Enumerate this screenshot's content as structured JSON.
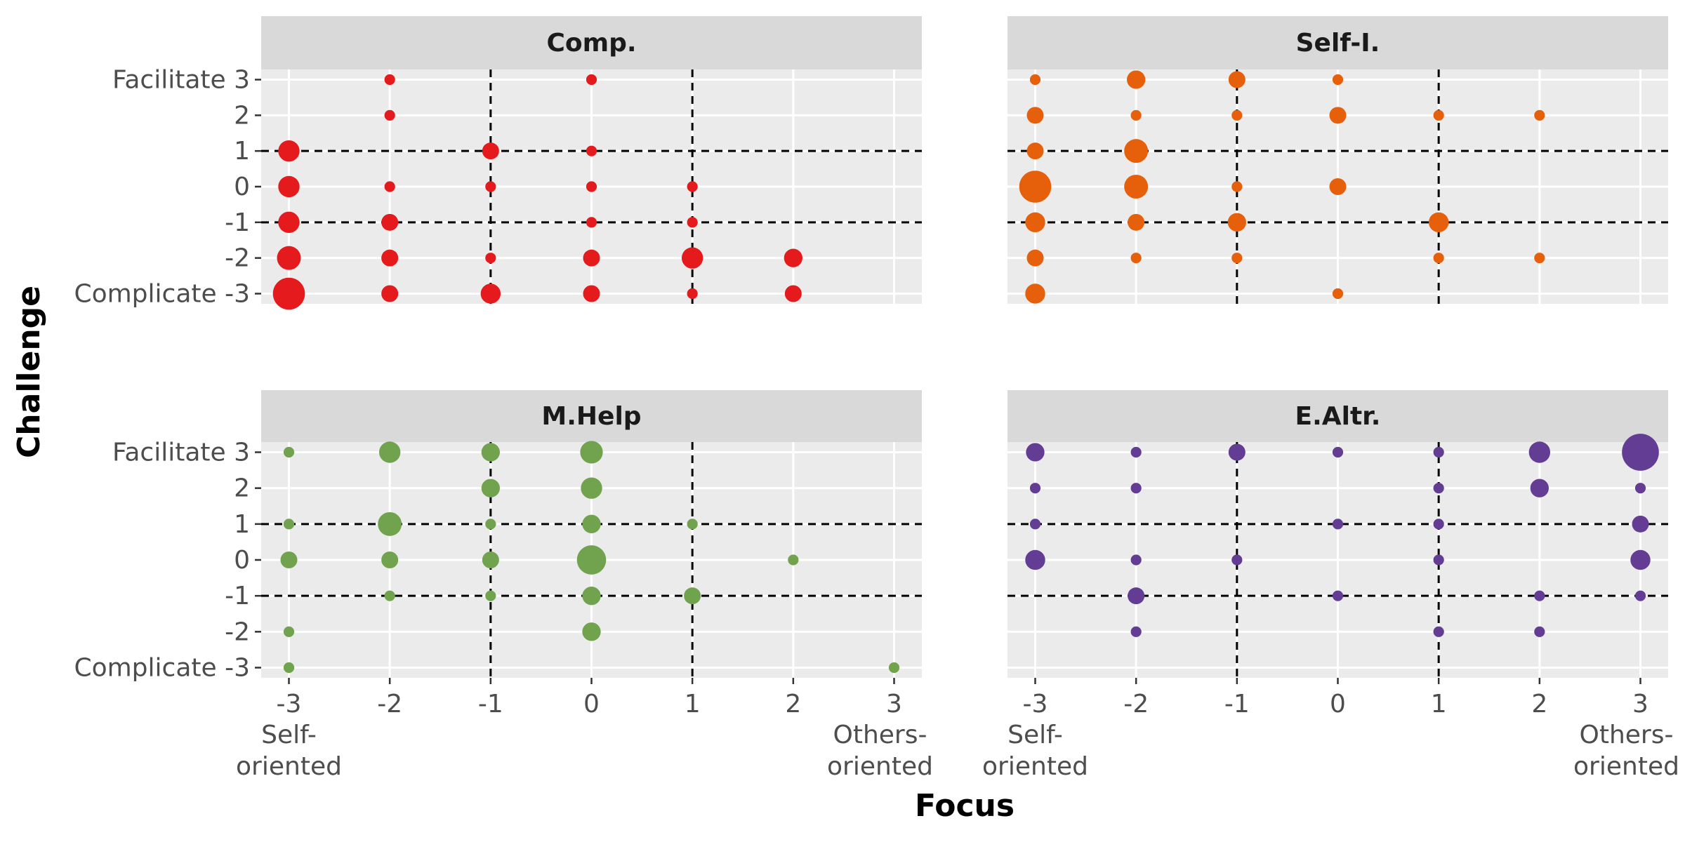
{
  "chart_data": {
    "type": "scatter",
    "xlabel": "Focus",
    "ylabel": "Challenge",
    "xlim": [
      -3,
      3
    ],
    "ylim": [
      -3,
      3
    ],
    "x_ticks": [
      -3,
      -2,
      -1,
      0,
      1,
      2,
      3
    ],
    "y_ticks": [
      -3,
      -2,
      -1,
      0,
      1,
      2,
      3
    ],
    "x_tick_labels": [
      "-3",
      "-2",
      "-1",
      "0",
      "1",
      "2",
      "3"
    ],
    "y_tick_labels": [
      "Complicate -3",
      "-2",
      "-1",
      "0",
      "1",
      "2",
      "Facilitate 3"
    ],
    "x_end_labels": {
      "left": [
        "Self-",
        "oriented"
      ],
      "right": [
        "Others-",
        "oriented"
      ]
    },
    "grid": true,
    "reference_lines": "dashed",
    "size_note": "point area proportional to count",
    "panels": [
      {
        "name": "Comp.",
        "color": "#e41a1c",
        "vlines": [
          -1,
          1
        ],
        "hlines": [
          -1,
          1
        ],
        "points": [
          {
            "x": -3,
            "y": 1,
            "n": 4
          },
          {
            "x": -3,
            "y": 0,
            "n": 4
          },
          {
            "x": -3,
            "y": -1,
            "n": 4
          },
          {
            "x": -3,
            "y": -2,
            "n": 5
          },
          {
            "x": -3,
            "y": -3,
            "n": 9
          },
          {
            "x": -2,
            "y": 3,
            "n": 1
          },
          {
            "x": -2,
            "y": 2,
            "n": 1
          },
          {
            "x": -2,
            "y": 0,
            "n": 1
          },
          {
            "x": -2,
            "y": -1,
            "n": 2.5
          },
          {
            "x": -2,
            "y": -2,
            "n": 2.5
          },
          {
            "x": -2,
            "y": -3,
            "n": 2.5
          },
          {
            "x": -1,
            "y": 1,
            "n": 2.5
          },
          {
            "x": -1,
            "y": 0,
            "n": 1
          },
          {
            "x": -1,
            "y": -2,
            "n": 1
          },
          {
            "x": -1,
            "y": -3,
            "n": 3.5
          },
          {
            "x": 0,
            "y": 3,
            "n": 1
          },
          {
            "x": 0,
            "y": 1,
            "n": 1
          },
          {
            "x": 0,
            "y": 0,
            "n": 1
          },
          {
            "x": 0,
            "y": -1,
            "n": 1
          },
          {
            "x": 0,
            "y": -2,
            "n": 2.5
          },
          {
            "x": 0,
            "y": -3,
            "n": 2.5
          },
          {
            "x": 1,
            "y": 0,
            "n": 1
          },
          {
            "x": 1,
            "y": -1,
            "n": 1
          },
          {
            "x": 1,
            "y": -2,
            "n": 4
          },
          {
            "x": 1,
            "y": -3,
            "n": 1
          },
          {
            "x": 2,
            "y": -2,
            "n": 3
          },
          {
            "x": 2,
            "y": -3,
            "n": 2.5
          }
        ]
      },
      {
        "name": "Self-I.",
        "color": "#e6600c",
        "vlines": [
          -1,
          1
        ],
        "hlines": [
          -1,
          1
        ],
        "points": [
          {
            "x": -3,
            "y": 3,
            "n": 1
          },
          {
            "x": -3,
            "y": 2,
            "n": 2.5
          },
          {
            "x": -3,
            "y": 1,
            "n": 2.5
          },
          {
            "x": -3,
            "y": 0,
            "n": 9
          },
          {
            "x": -3,
            "y": -1,
            "n": 3.5
          },
          {
            "x": -3,
            "y": -2,
            "n": 2.5
          },
          {
            "x": -3,
            "y": -3,
            "n": 3.5
          },
          {
            "x": -2,
            "y": 3,
            "n": 3
          },
          {
            "x": -2,
            "y": 2,
            "n": 1
          },
          {
            "x": -2,
            "y": 1,
            "n": 5
          },
          {
            "x": -2,
            "y": 0,
            "n": 5
          },
          {
            "x": -2,
            "y": -1,
            "n": 2.5
          },
          {
            "x": -2,
            "y": -2,
            "n": 1
          },
          {
            "x": -1,
            "y": 3,
            "n": 2.5
          },
          {
            "x": -1,
            "y": 2,
            "n": 1
          },
          {
            "x": -1,
            "y": 0,
            "n": 1
          },
          {
            "x": -1,
            "y": -1,
            "n": 3
          },
          {
            "x": -1,
            "y": -2,
            "n": 1
          },
          {
            "x": 0,
            "y": 3,
            "n": 1
          },
          {
            "x": 0,
            "y": 2,
            "n": 2.5
          },
          {
            "x": 0,
            "y": 0,
            "n": 2.5
          },
          {
            "x": 0,
            "y": -3,
            "n": 1
          },
          {
            "x": 1,
            "y": 2,
            "n": 1
          },
          {
            "x": 1,
            "y": -1,
            "n": 3.5
          },
          {
            "x": 1,
            "y": -2,
            "n": 1
          },
          {
            "x": 2,
            "y": 2,
            "n": 1
          },
          {
            "x": 2,
            "y": -2,
            "n": 1
          }
        ]
      },
      {
        "name": "M.Help",
        "color": "#71a34f",
        "vlines": [
          -1,
          1
        ],
        "hlines": [
          -1,
          1
        ],
        "points": [
          {
            "x": -3,
            "y": 3,
            "n": 1
          },
          {
            "x": -3,
            "y": 1,
            "n": 1
          },
          {
            "x": -3,
            "y": 0,
            "n": 2.5
          },
          {
            "x": -3,
            "y": -2,
            "n": 1
          },
          {
            "x": -3,
            "y": -3,
            "n": 1
          },
          {
            "x": -2,
            "y": 3,
            "n": 4
          },
          {
            "x": -2,
            "y": 1,
            "n": 5
          },
          {
            "x": -2,
            "y": 0,
            "n": 2.5
          },
          {
            "x": -2,
            "y": -1,
            "n": 1
          },
          {
            "x": -1,
            "y": 3,
            "n": 3
          },
          {
            "x": -1,
            "y": 2,
            "n": 3
          },
          {
            "x": -1,
            "y": 1,
            "n": 1
          },
          {
            "x": -1,
            "y": 0,
            "n": 2.5
          },
          {
            "x": -1,
            "y": -1,
            "n": 1
          },
          {
            "x": 0,
            "y": 3,
            "n": 4.5
          },
          {
            "x": 0,
            "y": 2,
            "n": 4
          },
          {
            "x": 0,
            "y": 1,
            "n": 3
          },
          {
            "x": 0,
            "y": 0,
            "n": 7.5
          },
          {
            "x": 0,
            "y": -1,
            "n": 3
          },
          {
            "x": 0,
            "y": -2,
            "n": 3
          },
          {
            "x": 1,
            "y": 1,
            "n": 1
          },
          {
            "x": 1,
            "y": -1,
            "n": 2.5
          },
          {
            "x": 2,
            "y": 0,
            "n": 1
          },
          {
            "x": 3,
            "y": -3,
            "n": 1
          }
        ]
      },
      {
        "name": "E.Altr.",
        "color": "#633d93",
        "vlines": [
          -1,
          1
        ],
        "hlines": [
          -1,
          1
        ],
        "points": [
          {
            "x": -3,
            "y": 3,
            "n": 3
          },
          {
            "x": -3,
            "y": 2,
            "n": 1
          },
          {
            "x": -3,
            "y": 1,
            "n": 1
          },
          {
            "x": -3,
            "y": 0,
            "n": 3.5
          },
          {
            "x": -2,
            "y": 3,
            "n": 1
          },
          {
            "x": -2,
            "y": 2,
            "n": 1
          },
          {
            "x": -2,
            "y": 0,
            "n": 1
          },
          {
            "x": -2,
            "y": -1,
            "n": 2.5
          },
          {
            "x": -2,
            "y": -2,
            "n": 1
          },
          {
            "x": -1,
            "y": 3,
            "n": 2.5
          },
          {
            "x": -1,
            "y": 0,
            "n": 1
          },
          {
            "x": 0,
            "y": 3,
            "n": 1
          },
          {
            "x": 0,
            "y": 1,
            "n": 1
          },
          {
            "x": 0,
            "y": -1,
            "n": 1
          },
          {
            "x": 1,
            "y": 3,
            "n": 1
          },
          {
            "x": 1,
            "y": 2,
            "n": 1
          },
          {
            "x": 1,
            "y": 1,
            "n": 1
          },
          {
            "x": 1,
            "y": 0,
            "n": 1
          },
          {
            "x": 1,
            "y": -2,
            "n": 1
          },
          {
            "x": 2,
            "y": 3,
            "n": 4
          },
          {
            "x": 2,
            "y": 2,
            "n": 3
          },
          {
            "x": 2,
            "y": -1,
            "n": 1
          },
          {
            "x": 2,
            "y": -2,
            "n": 1
          },
          {
            "x": 3,
            "y": 3,
            "n": 12
          },
          {
            "x": 3,
            "y": 2,
            "n": 1
          },
          {
            "x": 3,
            "y": 1,
            "n": 2.5
          },
          {
            "x": 3,
            "y": 0,
            "n": 3.5
          },
          {
            "x": 3,
            "y": -1,
            "n": 1
          }
        ]
      }
    ]
  }
}
